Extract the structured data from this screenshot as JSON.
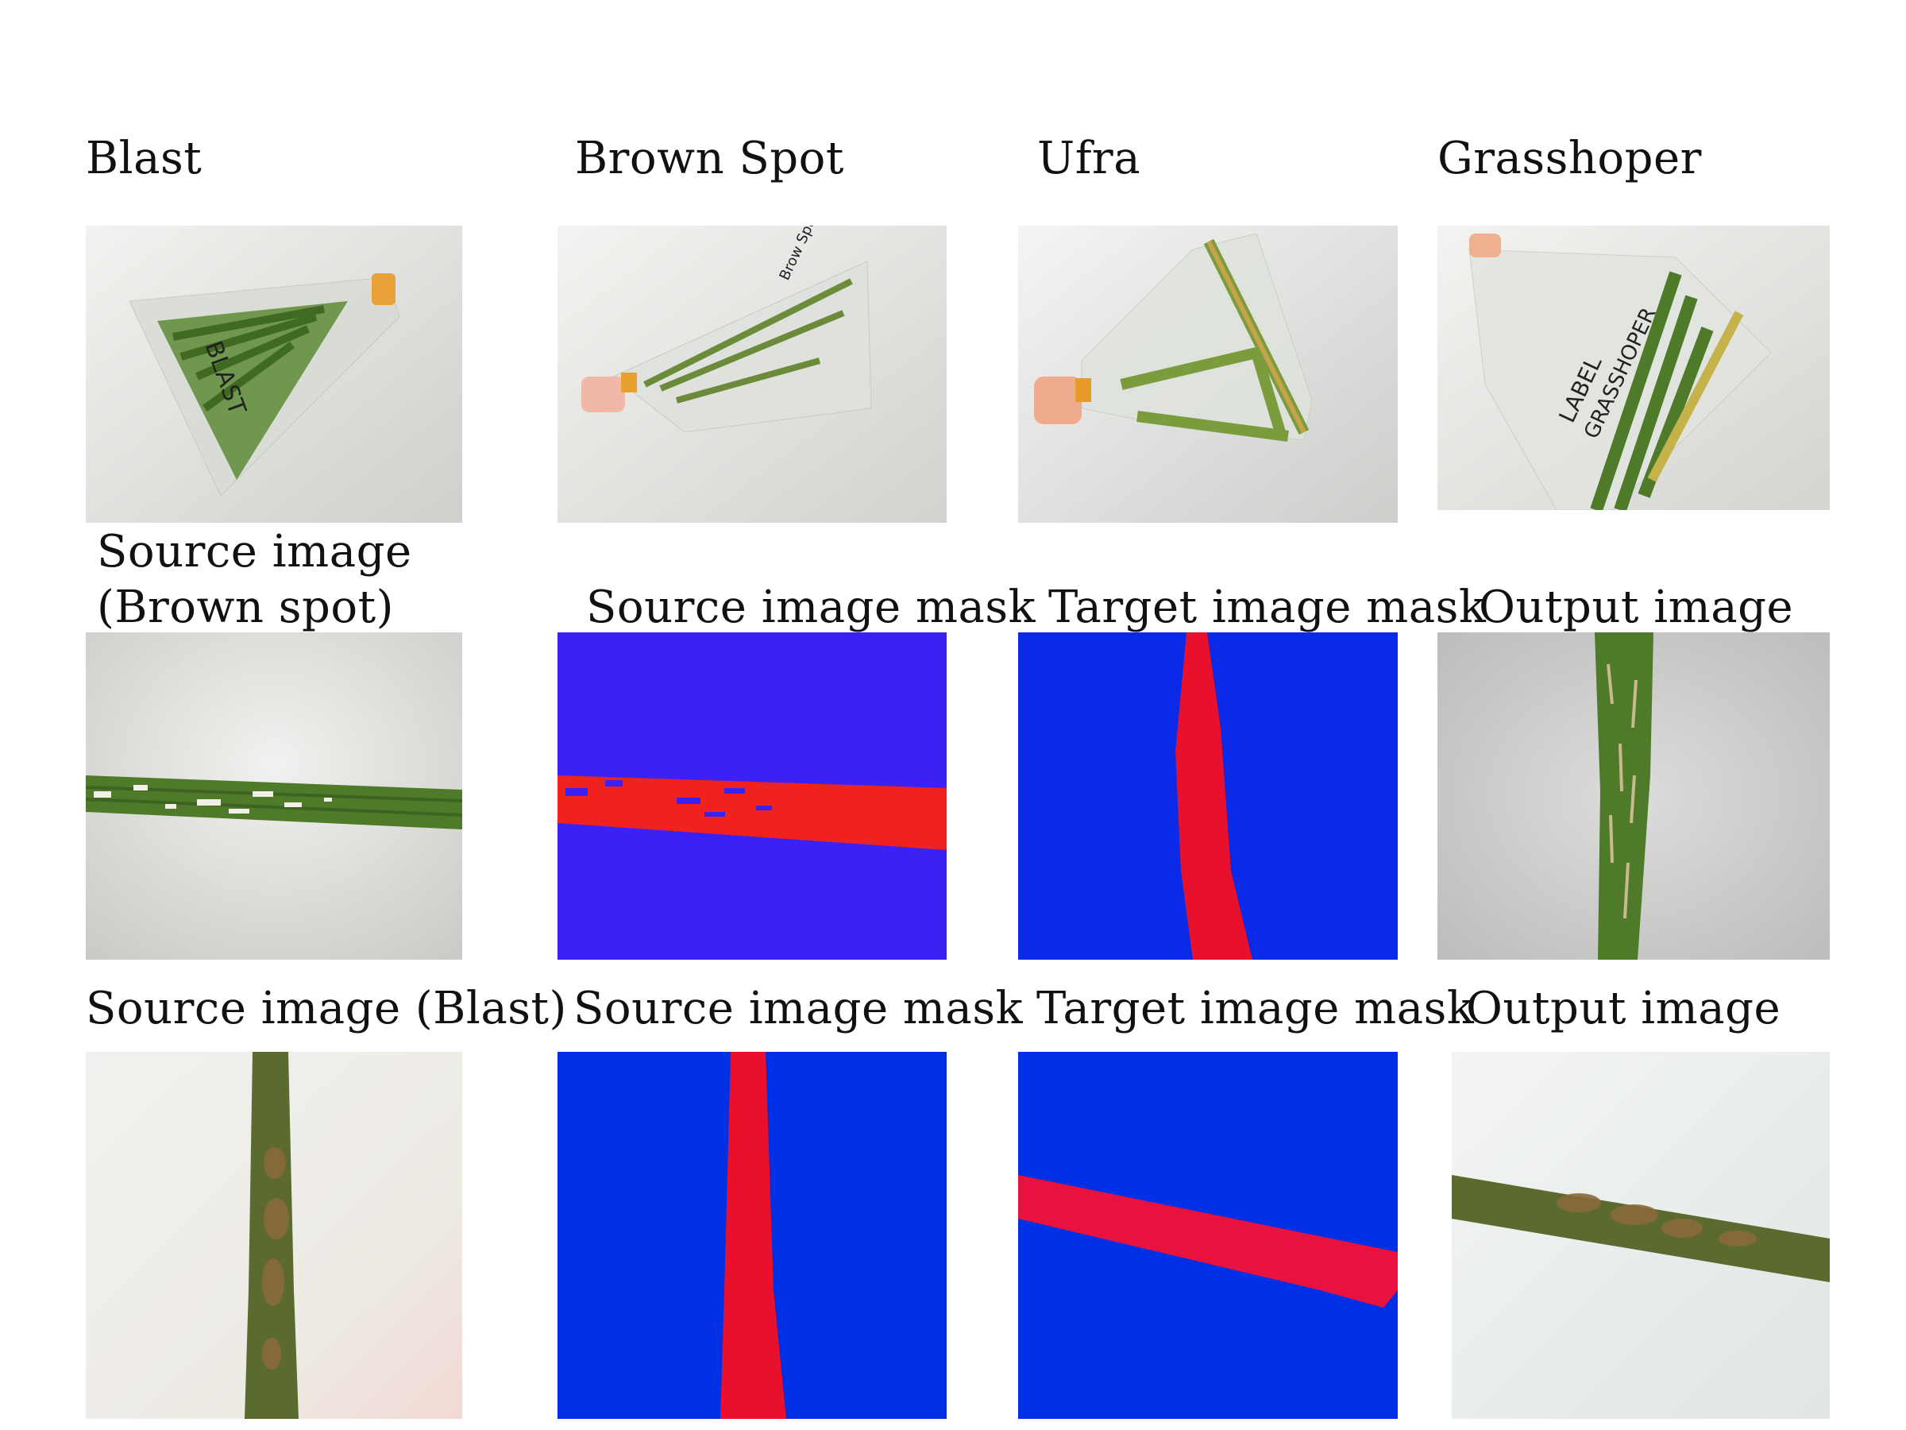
{
  "row1": {
    "labels": [
      "Blast",
      "Brown Spot",
      "Ufra",
      "Grasshoper"
    ]
  },
  "row1_bag_text": {
    "blast": "BLAST",
    "brown_spot": "Brow Spot",
    "grasshopper_label": "LABEL",
    "grasshopper_name": "GRASSHOPER"
  },
  "row2": {
    "source_label": "Source image (Brown spot)",
    "source_mask_label": "Source image mask",
    "target_mask_label": "Target image mask",
    "output_label": "Output image"
  },
  "row3": {
    "source_label": "Source image (Blast)",
    "source_mask_label": "Source image mask",
    "target_mask_label": "Target image mask",
    "output_label": "Output image"
  },
  "colors": {
    "mask_blue_row2": "#3a22f4",
    "mask_blue": "#0030e6",
    "mask_red": "#f0221e",
    "mask_crimson": "#e8123f",
    "leaf_green": "#4f7a2a",
    "background_gray": "#e6e6e4"
  }
}
